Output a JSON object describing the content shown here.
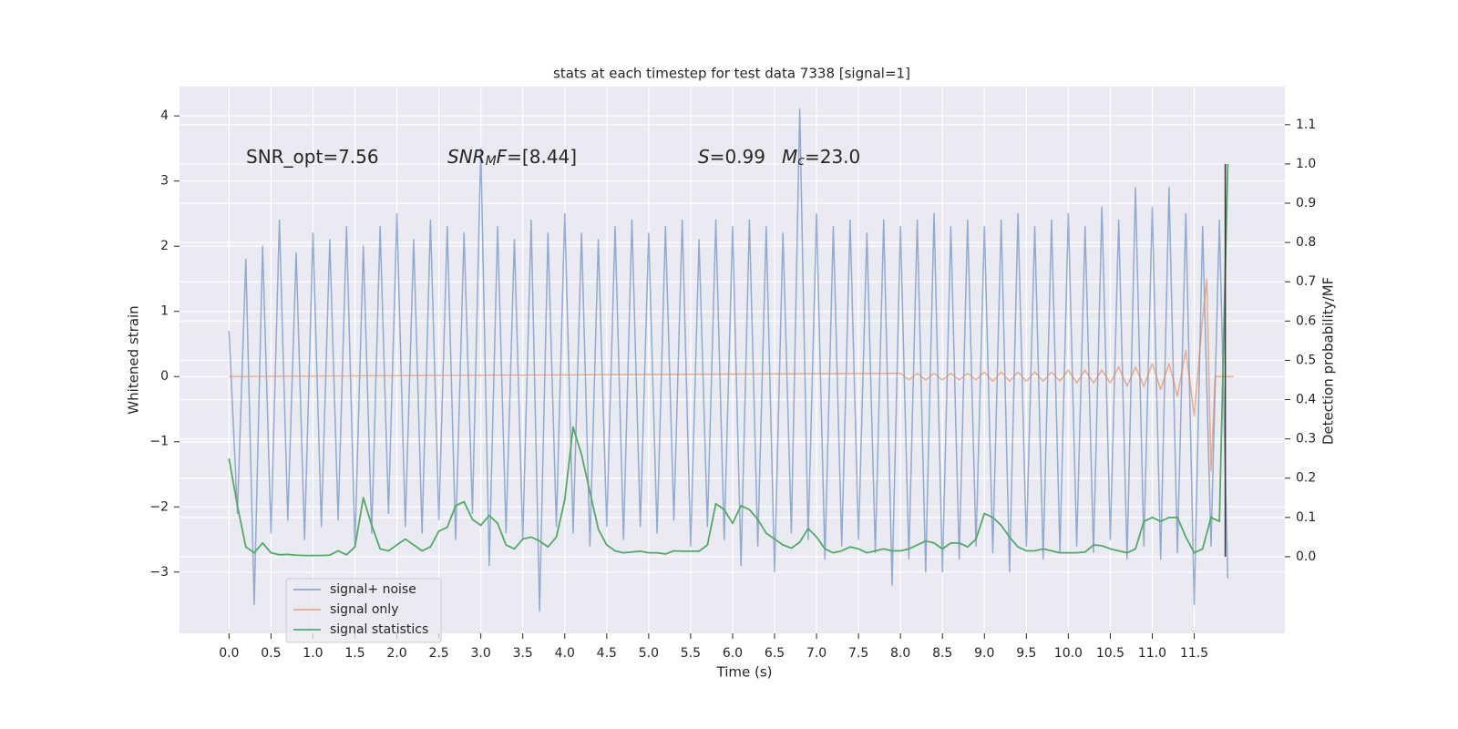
{
  "chart_data": {
    "type": "line",
    "title": "stats at each timestep for test data 7338 [signal=1]",
    "xlabel": "Time (s)",
    "ylabel": "Whitened strain",
    "y2label": "Detection probability/MF",
    "x": [
      0.0,
      0.1,
      0.2,
      0.3,
      0.4,
      0.5,
      0.6,
      0.7,
      0.8,
      0.9,
      1.0,
      1.1,
      1.2,
      1.3,
      1.4,
      1.5,
      1.6,
      1.7,
      1.8,
      1.9,
      2.0,
      2.1,
      2.2,
      2.3,
      2.4,
      2.5,
      2.6,
      2.7,
      2.8,
      2.9,
      3.0,
      3.1,
      3.2,
      3.3,
      3.4,
      3.5,
      3.6,
      3.7,
      3.8,
      3.9,
      4.0,
      4.1,
      4.2,
      4.3,
      4.4,
      4.5,
      4.6,
      4.7,
      4.8,
      4.9,
      5.0,
      5.1,
      5.2,
      5.3,
      5.4,
      5.5,
      5.6,
      5.7,
      5.8,
      5.9,
      6.0,
      6.1,
      6.2,
      6.3,
      6.4,
      6.5,
      6.6,
      6.7,
      6.8,
      6.9,
      7.0,
      7.1,
      7.2,
      7.3,
      7.4,
      7.5,
      7.6,
      7.7,
      7.8,
      7.9,
      8.0,
      8.1,
      8.2,
      8.3,
      8.4,
      8.5,
      8.6,
      8.7,
      8.8,
      8.9,
      9.0,
      9.1,
      9.2,
      9.3,
      9.4,
      9.5,
      9.6,
      9.7,
      9.8,
      9.9,
      10.0,
      10.1,
      10.2,
      10.3,
      10.4,
      10.5,
      10.6,
      10.7,
      10.8,
      10.9,
      11.0,
      11.1,
      11.2,
      11.3,
      11.4,
      11.5,
      11.6,
      11.7,
      11.8,
      11.9
    ],
    "series": [
      {
        "name": "signal+ noise",
        "color": "#4c72b0",
        "values": [
          0.7,
          -2.1,
          1.8,
          -3.5,
          2.0,
          -2.4,
          2.4,
          -2.2,
          1.9,
          -2.5,
          2.2,
          -2.3,
          2.1,
          -2.2,
          2.3,
          -2.6,
          2.0,
          -2.4,
          2.3,
          -2.1,
          2.5,
          -2.3,
          2.1,
          -2.4,
          2.4,
          -2.2,
          2.3,
          -2.5,
          2.2,
          -2.1,
          3.5,
          -2.9,
          2.3,
          -2.4,
          2.1,
          -2.5,
          2.4,
          -3.6,
          2.2,
          -2.3,
          2.5,
          -2.4,
          2.2,
          -2.6,
          2.1,
          -2.3,
          2.3,
          -2.5,
          2.4,
          -2.3,
          2.2,
          -2.4,
          2.3,
          -2.2,
          2.4,
          -2.6,
          2.1,
          -2.3,
          2.4,
          -2.5,
          2.3,
          -2.9,
          2.4,
          -2.6,
          2.3,
          -3.0,
          2.2,
          -2.4,
          4.1,
          -2.5,
          2.5,
          -2.8,
          2.3,
          -2.6,
          2.4,
          -2.5,
          2.2,
          -2.7,
          2.4,
          -3.2,
          2.3,
          -2.8,
          2.4,
          -3.0,
          2.5,
          -3.0,
          2.3,
          -2.8,
          2.4,
          -2.6,
          2.3,
          -2.7,
          2.4,
          -3.0,
          2.5,
          -2.6,
          2.3,
          -2.8,
          2.4,
          -2.7,
          2.5,
          -2.6,
          2.3,
          -2.7,
          2.6,
          -2.5,
          2.4,
          -2.8,
          2.9,
          -2.6,
          2.6,
          -2.8,
          2.9,
          -2.7,
          2.5,
          -3.5,
          2.3,
          -2.6,
          2.4,
          -3.1
        ]
      },
      {
        "name": "signal only",
        "color": "#dd8452",
        "x": [
          0,
          8.0,
          8.1,
          8.2,
          8.3,
          8.4,
          8.5,
          8.6,
          8.7,
          8.8,
          8.9,
          9.0,
          9.1,
          9.2,
          9.3,
          9.4,
          9.5,
          9.6,
          9.7,
          9.8,
          9.9,
          10.0,
          10.1,
          10.2,
          10.3,
          10.4,
          10.5,
          10.6,
          10.7,
          10.8,
          10.9,
          11.0,
          11.1,
          11.2,
          11.3,
          11.4,
          11.5,
          11.6,
          11.65,
          11.7,
          11.75,
          11.97
        ],
        "values": [
          0,
          0.05,
          -0.05,
          0.05,
          -0.05,
          0.05,
          -0.05,
          0.05,
          -0.05,
          0.05,
          -0.05,
          0.07,
          -0.07,
          0.07,
          -0.07,
          0.07,
          -0.07,
          0.07,
          -0.07,
          0.07,
          -0.07,
          0.1,
          -0.1,
          0.1,
          -0.1,
          0.1,
          -0.1,
          0.15,
          -0.15,
          0.15,
          -0.15,
          0.2,
          -0.2,
          0.2,
          -0.3,
          0.4,
          -0.6,
          0.9,
          1.5,
          -1.45,
          0,
          0
        ]
      },
      {
        "name": "signal statistics",
        "color": "#55a868",
        "axis": "y2",
        "values": [
          0.25,
          0.13,
          0.025,
          0.01,
          0.035,
          0.01,
          0.005,
          0.006,
          0.004,
          0.003,
          0.003,
          0.003,
          0.004,
          0.015,
          0.005,
          0.025,
          0.15,
          0.08,
          0.02,
          0.015,
          0.03,
          0.045,
          0.03,
          0.015,
          0.025,
          0.065,
          0.075,
          0.13,
          0.14,
          0.095,
          0.08,
          0.105,
          0.085,
          0.03,
          0.02,
          0.045,
          0.05,
          0.04,
          0.025,
          0.05,
          0.145,
          0.33,
          0.26,
          0.165,
          0.07,
          0.03,
          0.015,
          0.01,
          0.012,
          0.014,
          0.01,
          0.01,
          0.007,
          0.015,
          0.014,
          0.014,
          0.014,
          0.03,
          0.135,
          0.12,
          0.085,
          0.13,
          0.12,
          0.095,
          0.06,
          0.045,
          0.03,
          0.022,
          0.037,
          0.072,
          0.05,
          0.02,
          0.01,
          0.015,
          0.025,
          0.02,
          0.01,
          0.015,
          0.02,
          0.015,
          0.015,
          0.02,
          0.03,
          0.04,
          0.035,
          0.02,
          0.035,
          0.035,
          0.025,
          0.045,
          0.11,
          0.1,
          0.08,
          0.05,
          0.025,
          0.015,
          0.015,
          0.02,
          0.015,
          0.01,
          0.01,
          0.01,
          0.012,
          0.03,
          0.028,
          0.02,
          0.015,
          0.01,
          0.02,
          0.09,
          0.1,
          0.09,
          0.1,
          0.1,
          0.05,
          0.01,
          0.02,
          0.1,
          0.09,
          1.0
        ]
      }
    ],
    "markers": [
      {
        "x": 11.87,
        "ymin": 0,
        "ymax": 1,
        "color": "#333333",
        "axis": "y2"
      }
    ],
    "annotations": [
      [
        {
          "text": "SNR_opt=7.56"
        }
      ],
      [
        {
          "text": "SNR",
          "italic": true
        },
        {
          "text": "M",
          "italic": true,
          "sub": true
        },
        {
          "text": "F",
          "italic": true
        },
        {
          "text": "=[8.44]"
        }
      ],
      [
        {
          "text": "S",
          "italic": true
        },
        {
          "text": "=0.99"
        }
      ],
      [
        {
          "text": "M",
          "italic": true
        },
        {
          "text": "c",
          "italic": true,
          "sub": true
        },
        {
          "text": "=23.0"
        }
      ]
    ],
    "xlim": [
      -0.59,
      12.58
    ],
    "ylim": [
      -3.94,
      4.45
    ],
    "y2lim": [
      -0.195,
      1.197
    ],
    "xticks": [
      {
        "value": 0,
        "label": "0.0"
      },
      {
        "value": 0.5,
        "label": "0.5"
      },
      {
        "value": 1,
        "label": "1.0"
      },
      {
        "value": 1.5,
        "label": "1.5"
      },
      {
        "value": 2,
        "label": "2.0"
      },
      {
        "value": 2.5,
        "label": "2.5"
      },
      {
        "value": 3,
        "label": "3.0"
      },
      {
        "value": 3.5,
        "label": "3.5"
      },
      {
        "value": 4,
        "label": "4.0"
      },
      {
        "value": 4.5,
        "label": "4.5"
      },
      {
        "value": 5,
        "label": "5.0"
      },
      {
        "value": 5.5,
        "label": "5.5"
      },
      {
        "value": 6,
        "label": "6.0"
      },
      {
        "value": 6.5,
        "label": "6.5"
      },
      {
        "value": 7,
        "label": "7.0"
      },
      {
        "value": 7.5,
        "label": "7.5"
      },
      {
        "value": 8,
        "label": "8.0"
      },
      {
        "value": 8.5,
        "label": "8.5"
      },
      {
        "value": 9,
        "label": "9.0"
      },
      {
        "value": 9.5,
        "label": "9.5"
      },
      {
        "value": 10,
        "label": "10.0"
      },
      {
        "value": 10.5,
        "label": "10.5"
      },
      {
        "value": 11,
        "label": "11.0"
      },
      {
        "value": 11.5,
        "label": "11.5"
      }
    ],
    "yticks": [
      {
        "value": -3,
        "label": "−3"
      },
      {
        "value": -2,
        "label": "−2"
      },
      {
        "value": -1,
        "label": "−1"
      },
      0,
      1,
      2,
      3,
      4
    ],
    "y2ticks": [
      {
        "value": 0,
        "label": "0.0"
      },
      {
        "value": 0.1,
        "label": "0.1"
      },
      {
        "value": 0.2,
        "label": "0.2"
      },
      {
        "value": 0.3,
        "label": "0.3"
      },
      {
        "value": 0.4,
        "label": "0.4"
      },
      {
        "value": 0.5,
        "label": "0.5"
      },
      {
        "value": 0.6,
        "label": "0.6"
      },
      {
        "value": 0.7,
        "label": "0.7"
      },
      {
        "value": 0.8,
        "label": "0.8"
      },
      {
        "value": 0.9,
        "label": "0.9"
      },
      {
        "value": 1.0,
        "label": "1.0"
      },
      {
        "value": 1.1,
        "label": "1.1"
      }
    ],
    "grid": true,
    "legend": "lower left"
  }
}
